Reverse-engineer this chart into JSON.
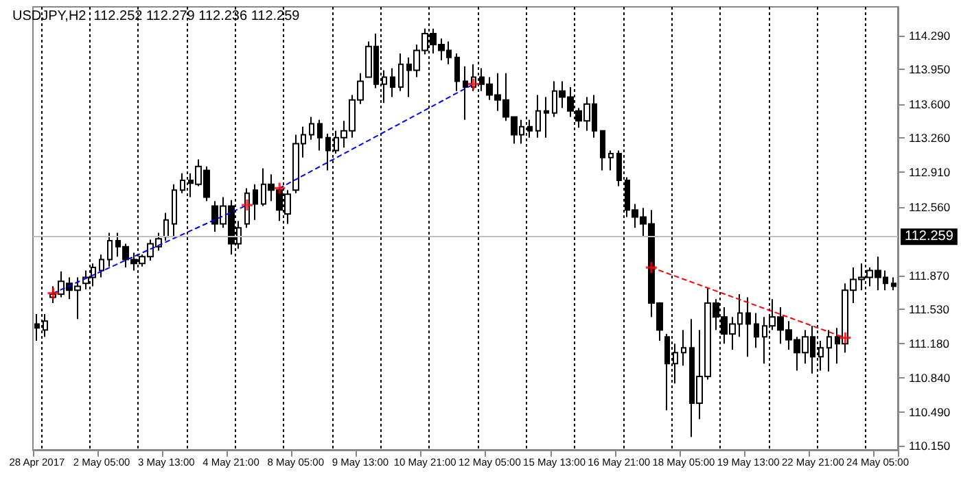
{
  "chart_data": {
    "type": "candlestick",
    "title": "USDJPY,H2  112.252 112.279 112.236 112.259",
    "categories": [
      "28 Apr 2017",
      null,
      null,
      null,
      null,
      null,
      null,
      null,
      "2 May 05:00",
      null,
      null,
      null,
      null,
      null,
      null,
      null,
      "3 May 13:00",
      null,
      null,
      null,
      null,
      null,
      null,
      null,
      "4 May 21:00",
      null,
      null,
      null,
      null,
      null,
      null,
      null,
      "8 May 05:00",
      null,
      null,
      null,
      null,
      null,
      null,
      null,
      "9 May 13:00",
      null,
      null,
      null,
      null,
      null,
      null,
      null,
      "10 May 21:00",
      null,
      null,
      null,
      null,
      null,
      null,
      null,
      "12 May 05:00",
      null,
      null,
      null,
      null,
      null,
      null,
      null,
      "15 May 13:00",
      null,
      null,
      null,
      null,
      null,
      null,
      null,
      "16 May 21:00",
      null,
      null,
      null,
      null,
      null,
      null,
      null,
      "18 May 05:00",
      null,
      null,
      null,
      null,
      null,
      null,
      null,
      "19 May 13:00",
      null,
      null,
      null,
      null,
      null,
      null,
      null,
      "22 May 21:00",
      null,
      null,
      null,
      null,
      null,
      null,
      null,
      "24 May 05:00",
      null,
      null
    ],
    "ylim": [
      110.11,
      114.58
    ],
    "yticks": [
      {
        "value": 110.15,
        "label": "110.150"
      },
      {
        "value": 110.49,
        "label": "110.490"
      },
      {
        "value": 110.84,
        "label": "110.840"
      },
      {
        "value": 111.18,
        "label": "111.180"
      },
      {
        "value": 111.53,
        "label": "111.530"
      },
      {
        "value": 111.87,
        "label": "111.870"
      },
      {
        "value": 112.56,
        "label": "112.560"
      },
      {
        "value": 112.91,
        "label": "112.910"
      },
      {
        "value": 113.26,
        "label": "113.260"
      },
      {
        "value": 113.6,
        "label": "113.600"
      },
      {
        "value": 113.95,
        "label": "113.950"
      },
      {
        "value": 114.29,
        "label": "114.290"
      }
    ],
    "grid": "x",
    "ref_lines": [
      {
        "axis": "y",
        "value": 112.259,
        "label": "112.259",
        "color": "#c0c0c0"
      }
    ],
    "series": [
      {
        "type": "candlestick",
        "color": "#000000",
        "ohlc": [
          [
            111.38,
            111.48,
            111.21,
            111.34
          ],
          [
            111.32,
            111.48,
            111.25,
            111.41
          ],
          [
            111.65,
            111.76,
            111.59,
            111.68
          ],
          [
            111.68,
            111.91,
            111.65,
            111.81
          ],
          [
            111.79,
            111.85,
            111.63,
            111.72
          ],
          [
            111.72,
            111.85,
            111.43,
            111.76
          ],
          [
            111.79,
            111.92,
            111.73,
            111.85
          ],
          [
            111.85,
            111.99,
            111.76,
            111.95
          ],
          [
            111.92,
            112.08,
            111.85,
            112.03
          ],
          [
            112.03,
            112.3,
            111.96,
            112.22
          ],
          [
            112.22,
            112.3,
            112.06,
            112.16
          ],
          [
            112.16,
            112.19,
            111.95,
            112.03
          ],
          [
            112.03,
            112.1,
            111.92,
            111.99
          ],
          [
            111.99,
            112.08,
            111.96,
            112.06
          ],
          [
            112.06,
            112.23,
            112.02,
            112.19
          ],
          [
            112.16,
            112.3,
            112.12,
            112.24
          ],
          [
            112.26,
            112.5,
            112.22,
            112.43
          ],
          [
            112.39,
            112.79,
            112.26,
            112.73
          ],
          [
            112.73,
            112.9,
            112.7,
            112.83
          ],
          [
            112.83,
            112.9,
            112.66,
            112.8
          ],
          [
            112.79,
            113.04,
            112.77,
            112.97
          ],
          [
            112.93,
            112.97,
            112.62,
            112.66
          ],
          [
            112.57,
            112.62,
            112.31,
            112.39
          ],
          [
            112.39,
            112.66,
            112.35,
            112.57
          ],
          [
            112.57,
            112.63,
            112.08,
            112.19
          ],
          [
            112.19,
            112.42,
            112.14,
            112.35
          ],
          [
            112.39,
            112.75,
            112.35,
            112.7
          ],
          [
            112.73,
            112.79,
            112.43,
            112.59
          ],
          [
            112.59,
            112.95,
            112.57,
            112.79
          ],
          [
            112.79,
            112.89,
            112.62,
            112.73
          ],
          [
            112.73,
            112.75,
            112.42,
            112.53
          ],
          [
            112.49,
            112.73,
            112.39,
            112.69
          ],
          [
            112.73,
            113.29,
            112.7,
            113.2
          ],
          [
            113.2,
            113.37,
            113.06,
            113.29
          ],
          [
            113.29,
            113.47,
            113.24,
            113.4
          ],
          [
            113.4,
            113.44,
            113.13,
            113.26
          ],
          [
            113.26,
            113.3,
            112.93,
            113.13
          ],
          [
            113.13,
            113.33,
            113.1,
            113.26
          ],
          [
            113.26,
            113.43,
            113.16,
            113.33
          ],
          [
            113.33,
            113.69,
            113.26,
            113.64
          ],
          [
            113.64,
            113.91,
            113.6,
            113.83
          ],
          [
            113.87,
            114.23,
            113.87,
            114.18
          ],
          [
            114.18,
            114.31,
            113.76,
            113.8
          ],
          [
            113.8,
            113.94,
            113.61,
            113.87
          ],
          [
            113.87,
            113.96,
            113.67,
            113.77
          ],
          [
            113.77,
            114.11,
            113.73,
            114.0
          ],
          [
            114.0,
            114.07,
            113.67,
            113.94
          ],
          [
            113.94,
            114.2,
            113.87,
            114.14
          ],
          [
            114.14,
            114.36,
            114.1,
            114.31
          ],
          [
            114.31,
            114.36,
            114.11,
            114.2
          ],
          [
            114.2,
            114.26,
            114.04,
            114.14
          ],
          [
            114.14,
            114.23,
            114.0,
            114.07
          ],
          [
            114.07,
            114.11,
            113.73,
            113.83
          ],
          [
            113.83,
            113.98,
            113.44,
            113.77
          ],
          [
            113.77,
            114.0,
            113.73,
            113.87
          ],
          [
            113.87,
            113.96,
            113.73,
            113.8
          ],
          [
            113.8,
            113.87,
            113.64,
            113.69
          ],
          [
            113.69,
            113.91,
            113.53,
            113.64
          ],
          [
            113.64,
            113.91,
            113.43,
            113.47
          ],
          [
            113.47,
            113.47,
            113.2,
            113.29
          ],
          [
            113.29,
            113.44,
            113.2,
            113.37
          ],
          [
            113.37,
            113.44,
            113.26,
            113.33
          ],
          [
            113.33,
            113.69,
            113.26,
            113.53
          ],
          [
            113.53,
            113.67,
            113.26,
            113.51
          ],
          [
            113.51,
            113.83,
            113.47,
            113.73
          ],
          [
            113.73,
            113.83,
            113.56,
            113.67
          ],
          [
            113.67,
            113.77,
            113.47,
            113.53
          ],
          [
            113.53,
            113.56,
            113.36,
            113.43
          ],
          [
            113.43,
            113.67,
            113.33,
            113.6
          ],
          [
            113.6,
            113.69,
            113.26,
            113.33
          ],
          [
            113.33,
            113.33,
            112.93,
            113.06
          ],
          [
            113.06,
            113.13,
            112.93,
            113.1
          ],
          [
            113.1,
            113.13,
            112.77,
            112.83
          ],
          [
            112.83,
            112.86,
            112.46,
            112.53
          ],
          [
            112.53,
            112.59,
            112.35,
            112.46
          ],
          [
            112.46,
            112.55,
            112.26,
            112.39
          ],
          [
            112.39,
            112.53,
            111.45,
            111.59
          ],
          [
            111.59,
            111.6,
            111.21,
            111.32
          ],
          [
            111.25,
            111.28,
            110.51,
            110.98
          ],
          [
            110.98,
            111.18,
            110.78,
            111.09
          ],
          [
            111.09,
            111.32,
            110.96,
            111.14
          ],
          [
            111.14,
            111.43,
            110.24,
            110.58
          ],
          [
            110.58,
            111.32,
            110.42,
            110.85
          ],
          [
            110.85,
            111.75,
            110.82,
            111.59
          ],
          [
            111.59,
            111.63,
            111.32,
            111.45
          ],
          [
            111.45,
            111.55,
            111.18,
            111.28
          ],
          [
            111.28,
            111.45,
            111.12,
            111.38
          ],
          [
            111.38,
            111.68,
            111.25,
            111.49
          ],
          [
            111.49,
            111.65,
            111.05,
            111.38
          ],
          [
            111.38,
            111.49,
            111.14,
            111.25
          ],
          [
            111.25,
            111.45,
            110.98,
            111.36
          ],
          [
            111.36,
            111.63,
            111.32,
            111.45
          ],
          [
            111.45,
            111.55,
            111.18,
            111.32
          ],
          [
            111.32,
            111.41,
            111.12,
            111.22
          ],
          [
            111.22,
            111.25,
            110.91,
            111.09
          ],
          [
            111.09,
            111.32,
            110.98,
            111.25
          ],
          [
            111.25,
            111.36,
            110.88,
            111.05
          ],
          [
            111.05,
            111.21,
            110.91,
            111.14
          ],
          [
            111.14,
            111.32,
            110.9,
            111.25
          ],
          [
            111.25,
            111.34,
            110.98,
            111.18
          ],
          [
            111.18,
            111.79,
            111.09,
            111.72
          ],
          [
            111.72,
            111.95,
            111.59,
            111.83
          ],
          [
            111.83,
            111.99,
            111.72,
            111.85
          ],
          [
            111.85,
            111.95,
            111.76,
            111.92
          ],
          [
            111.92,
            112.06,
            111.72,
            111.85
          ],
          [
            111.85,
            111.92,
            111.72,
            111.79
          ],
          [
            111.79,
            111.85,
            111.72,
            111.76
          ]
        ]
      },
      {
        "type": "line",
        "color": "#0000ff",
        "line_style": "dashed",
        "marker": "none",
        "values": [
          null,
          null,
          111.69,
          null,
          null,
          null,
          null,
          null,
          null,
          null,
          null,
          null,
          null,
          null,
          null,
          null,
          null,
          null,
          null,
          null,
          null,
          null,
          null,
          null,
          null,
          null,
          112.58,
          null,
          null,
          null,
          null,
          null,
          null,
          null,
          null,
          null,
          null,
          null,
          null,
          null,
          null,
          null,
          null,
          null,
          null,
          null,
          null,
          null,
          null,
          null,
          null,
          null,
          null,
          null,
          null,
          null,
          null,
          null,
          null,
          null,
          null,
          null,
          null,
          null,
          null,
          null,
          null,
          null,
          null,
          null,
          null,
          null,
          null,
          null,
          null,
          null,
          null,
          null,
          null,
          null,
          null,
          null,
          null,
          null,
          null,
          null,
          null,
          null,
          null,
          null,
          null,
          null,
          null,
          null,
          null,
          null,
          null,
          null,
          null,
          null,
          null,
          null,
          null,
          null,
          null,
          null,
          null
        ]
      },
      {
        "type": "line",
        "color": "#0000ff",
        "line_style": "dashed",
        "marker": "none",
        "values": [
          null,
          null,
          null,
          null,
          null,
          null,
          null,
          null,
          null,
          null,
          null,
          null,
          null,
          null,
          null,
          null,
          null,
          null,
          null,
          null,
          null,
          null,
          null,
          null,
          null,
          null,
          null,
          null,
          null,
          null,
          112.75,
          null,
          null,
          null,
          null,
          null,
          null,
          null,
          null,
          null,
          null,
          null,
          null,
          null,
          null,
          null,
          null,
          null,
          null,
          null,
          null,
          null,
          null,
          null,
          113.8,
          null,
          null,
          null,
          null,
          null,
          null,
          null,
          null,
          null,
          null,
          null,
          null,
          null,
          null,
          null,
          null,
          null,
          null,
          null,
          null,
          null,
          null,
          null,
          null,
          null,
          null,
          null,
          null,
          null,
          null,
          null,
          null,
          null,
          null,
          null,
          null,
          null,
          null,
          null,
          null,
          null,
          null,
          null,
          null,
          null,
          null,
          null,
          null,
          null,
          null,
          null,
          null
        ]
      },
      {
        "type": "line",
        "color": "#ff0000",
        "line_style": "dashed",
        "marker": "none",
        "values": [
          null,
          null,
          null,
          null,
          null,
          null,
          null,
          null,
          null,
          null,
          null,
          null,
          null,
          null,
          null,
          null,
          null,
          null,
          null,
          null,
          null,
          null,
          null,
          null,
          null,
          null,
          null,
          null,
          null,
          null,
          null,
          null,
          null,
          null,
          null,
          null,
          null,
          null,
          null,
          null,
          null,
          null,
          null,
          null,
          null,
          null,
          null,
          null,
          null,
          null,
          null,
          null,
          null,
          null,
          null,
          null,
          null,
          null,
          null,
          null,
          null,
          null,
          null,
          null,
          null,
          null,
          null,
          null,
          null,
          null,
          null,
          null,
          null,
          null,
          null,
          null,
          111.95,
          null,
          null,
          null,
          null,
          null,
          null,
          null,
          null,
          null,
          null,
          null,
          null,
          null,
          null,
          null,
          null,
          null,
          null,
          null,
          null,
          null,
          null,
          null,
          111.24,
          null,
          null,
          null,
          null,
          null,
          null
        ]
      },
      {
        "type": "scatter",
        "color": "#ff0000",
        "marker": "cross",
        "values": [
          null,
          null,
          111.69,
          null,
          null,
          null,
          null,
          null,
          null,
          null,
          null,
          null,
          null,
          null,
          null,
          null,
          null,
          null,
          null,
          null,
          null,
          null,
          null,
          null,
          null,
          null,
          112.58,
          null,
          null,
          null,
          112.75,
          null,
          null,
          null,
          null,
          null,
          null,
          null,
          null,
          null,
          null,
          null,
          null,
          null,
          null,
          null,
          null,
          null,
          null,
          null,
          null,
          null,
          null,
          null,
          113.8,
          null,
          null,
          null,
          null,
          null,
          null,
          null,
          null,
          null,
          null,
          null,
          null,
          null,
          null,
          null,
          null,
          null,
          null,
          null,
          null,
          null,
          111.95,
          null,
          null,
          null,
          null,
          null,
          null,
          null,
          null,
          null,
          null,
          null,
          null,
          null,
          null,
          null,
          null,
          null,
          null,
          null,
          null,
          null,
          null,
          null,
          111.24,
          null,
          null,
          null,
          null,
          null,
          null
        ]
      }
    ]
  }
}
